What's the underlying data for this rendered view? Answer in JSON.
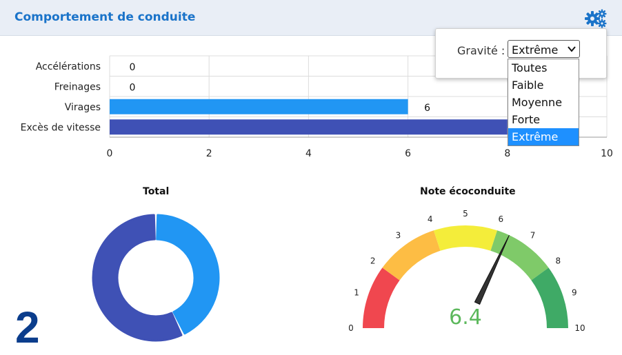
{
  "header": {
    "title": "Comportement de conduite",
    "settings_icon": "gears-icon"
  },
  "colors": {
    "header_bg": "#e9eef6",
    "title": "#1a73c9",
    "bar_light": "#2196f3",
    "bar_dark": "#3f51b5",
    "big_number": "#0b3d8c"
  },
  "chart_data": [
    {
      "type": "bar",
      "orientation": "horizontal",
      "categories": [
        "Accélérations",
        "Freinages",
        "Virages",
        "Excès de vitesse"
      ],
      "values": [
        0,
        0,
        6,
        8
      ],
      "data_labels": [
        "0",
        "0",
        "6",
        ""
      ],
      "xlim": [
        0,
        10
      ],
      "x_ticks": [
        "0",
        "2",
        "4",
        "6",
        "8",
        "10"
      ],
      "grid": true
    },
    {
      "type": "pie",
      "title": "Total",
      "slices": [
        {
          "value": 6,
          "color": "#2196f3"
        },
        {
          "value": 8,
          "color": "#3f51b5"
        }
      ]
    },
    {
      "type": "gauge",
      "title": "Note écoconduite",
      "value": 6.4,
      "value_label": "6.4",
      "min": 0,
      "max": 10,
      "ticks": [
        "0",
        "1",
        "2",
        "3",
        "4",
        "5",
        "6",
        "7",
        "8",
        "9",
        "10"
      ],
      "bands": [
        {
          "from": 0,
          "to": 2,
          "color": "#f0474f"
        },
        {
          "from": 2,
          "to": 4,
          "color": "#fdbd44"
        },
        {
          "from": 4,
          "to": 6,
          "color": "#f4ed3a"
        },
        {
          "from": 6,
          "to": 8,
          "color": "#7fca69"
        },
        {
          "from": 8,
          "to": 10,
          "color": "#3faa66"
        }
      ]
    }
  ],
  "total_count": "2",
  "filter": {
    "label": "Gravité :",
    "selected": "Extrême",
    "options": [
      "Toutes",
      "Faible",
      "Moyenne",
      "Forte",
      "Extrême"
    ],
    "selected_index": 4
  }
}
